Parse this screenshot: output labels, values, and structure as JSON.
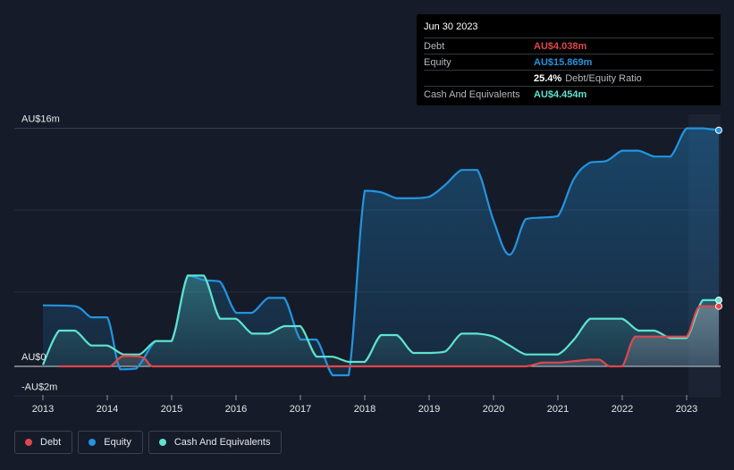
{
  "tooltip": {
    "date": "Jun 30 2023",
    "debt_label": "Debt",
    "debt_value": "AU$4.038m",
    "equity_label": "Equity",
    "equity_value": "AU$15.869m",
    "ratio_value": "25.4%",
    "ratio_label": "Debt/Equity Ratio",
    "cash_label": "Cash And Equivalents",
    "cash_value": "AU$4.454m"
  },
  "legend": {
    "debt": "Debt",
    "equity": "Equity",
    "cash": "Cash And Equivalents"
  },
  "colors": {
    "debt": "#e0474c",
    "equity": "#2394df",
    "cash": "#5fe3cf",
    "background": "#151b28"
  },
  "chart_data": {
    "type": "area",
    "currency_unit": "AU$ millions",
    "y_tick_labels": [
      {
        "value": 16,
        "label": "AU$16m"
      },
      {
        "value": 0,
        "label": "AU$0"
      },
      {
        "value": -2,
        "label": "-AU$2m"
      }
    ],
    "ylim": [
      -2,
      16
    ],
    "xlim": [
      2013,
      2023.5
    ],
    "x_tick_labels": [
      "2013",
      "2014",
      "2015",
      "2016",
      "2017",
      "2018",
      "2019",
      "2020",
      "2021",
      "2022",
      "2023"
    ],
    "series": [
      {
        "name": "Debt",
        "x": [
          2013.25,
          2013.9,
          2014.05,
          2014.25,
          2014.55,
          2014.7,
          2015.0,
          2016.0,
          2017.0,
          2018.0,
          2019.0,
          2020.0,
          2020.5,
          2020.75,
          2021.0,
          2021.25,
          2021.5,
          2021.65,
          2021.8,
          2022.0,
          2022.2,
          2022.5,
          2022.75,
          2023.0,
          2023.2,
          2023.5
        ],
        "y": [
          0,
          0,
          0,
          0.7,
          0.6,
          0,
          0,
          0,
          0,
          0,
          0,
          0,
          0,
          0.25,
          0.25,
          0.35,
          0.45,
          0.45,
          0,
          0,
          2.0,
          2.0,
          2.0,
          2.0,
          4.04,
          4.04
        ]
      },
      {
        "name": "Equity",
        "x": [
          2013.0,
          2013.5,
          2013.75,
          2014.0,
          2014.2,
          2014.45,
          2014.75,
          2015.0,
          2015.25,
          2015.5,
          2015.75,
          2016.0,
          2016.25,
          2016.5,
          2016.75,
          2017.0,
          2017.25,
          2017.5,
          2017.75,
          2018.0,
          2018.25,
          2018.5,
          2018.75,
          2019.0,
          2019.25,
          2019.5,
          2019.75,
          2020.0,
          2020.25,
          2020.5,
          2020.75,
          2021.0,
          2021.25,
          2021.5,
          2021.75,
          2022.0,
          2022.25,
          2022.5,
          2022.75,
          2023.0,
          2023.25,
          2023.5
        ],
        "y": [
          4.1,
          4.05,
          3.3,
          3.3,
          -0.2,
          -0.15,
          1.7,
          1.7,
          6.1,
          5.8,
          5.7,
          3.6,
          3.6,
          4.6,
          4.6,
          1.8,
          1.8,
          -0.6,
          -0.6,
          11.8,
          11.7,
          11.3,
          11.3,
          11.4,
          12.2,
          13.2,
          13.2,
          9.8,
          7.5,
          9.9,
          10.0,
          10.1,
          12.6,
          13.7,
          13.8,
          14.5,
          14.5,
          14.1,
          14.1,
          16.0,
          16.0,
          15.87
        ]
      },
      {
        "name": "Cash And Equivalents",
        "x": [
          2013.0,
          2013.25,
          2013.5,
          2013.75,
          2014.0,
          2014.25,
          2014.5,
          2014.75,
          2015.0,
          2015.25,
          2015.5,
          2015.75,
          2016.0,
          2016.25,
          2016.5,
          2016.75,
          2017.0,
          2017.25,
          2017.5,
          2017.75,
          2018.0,
          2018.25,
          2018.5,
          2018.75,
          2019.0,
          2019.25,
          2019.5,
          2019.75,
          2020.0,
          2020.25,
          2020.5,
          2020.75,
          2021.0,
          2021.25,
          2021.5,
          2021.75,
          2022.0,
          2022.25,
          2022.5,
          2022.75,
          2023.0,
          2023.25,
          2023.5
        ],
        "y": [
          0.1,
          2.4,
          2.4,
          1.4,
          1.4,
          0.8,
          0.8,
          1.7,
          1.7,
          6.1,
          6.1,
          3.2,
          3.2,
          2.2,
          2.2,
          2.7,
          2.7,
          0.65,
          0.65,
          0.3,
          0.3,
          2.1,
          2.1,
          0.9,
          0.9,
          1.0,
          2.2,
          2.2,
          2.0,
          1.4,
          0.8,
          0.8,
          0.8,
          1.8,
          3.2,
          3.2,
          3.2,
          2.4,
          2.4,
          1.9,
          1.9,
          4.45,
          4.45
        ]
      }
    ]
  }
}
